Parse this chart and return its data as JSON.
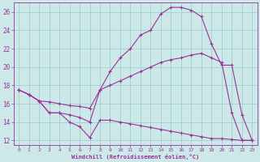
{
  "xlabel": "Windchill (Refroidissement éolien,°C)",
  "background_color": "#cce8e8",
  "grid_color": "#99cccc",
  "line_color": "#993399",
  "xlim": [
    -0.5,
    23.5
  ],
  "ylim": [
    11.5,
    27.0
  ],
  "yticks": [
    12,
    14,
    16,
    18,
    20,
    22,
    24,
    26
  ],
  "xticks": [
    0,
    1,
    2,
    3,
    4,
    5,
    6,
    7,
    8,
    9,
    10,
    11,
    12,
    13,
    14,
    15,
    16,
    17,
    18,
    19,
    20,
    21,
    22,
    23
  ],
  "series1_x": [
    0,
    1,
    2,
    3,
    4,
    5,
    6,
    7,
    8,
    9,
    10,
    11,
    12,
    13,
    14,
    15,
    16,
    17,
    18,
    19,
    20,
    21,
    22,
    23
  ],
  "series1_y": [
    17.5,
    17.0,
    16.3,
    15.0,
    15.0,
    14.0,
    13.5,
    12.3,
    14.2,
    14.2,
    14.0,
    13.8,
    13.6,
    13.4,
    13.2,
    13.0,
    12.8,
    12.6,
    12.4,
    12.2,
    12.2,
    12.1,
    12.0,
    12.0
  ],
  "series2_x": [
    0,
    1,
    2,
    3,
    4,
    5,
    6,
    7,
    8,
    9,
    10,
    11,
    12,
    13,
    14,
    15,
    16,
    17,
    18,
    19,
    20,
    21,
    22,
    23
  ],
  "series2_y": [
    17.5,
    17.0,
    16.3,
    16.2,
    16.0,
    15.8,
    15.7,
    15.5,
    17.5,
    18.0,
    18.5,
    19.0,
    19.5,
    20.0,
    20.5,
    20.8,
    21.0,
    21.3,
    21.5,
    21.0,
    20.5,
    15.0,
    12.0,
    12.0
  ],
  "series3_x": [
    0,
    1,
    2,
    3,
    4,
    5,
    6,
    7,
    8,
    9,
    10,
    11,
    12,
    13,
    14,
    15,
    16,
    17,
    18,
    19,
    20,
    21,
    22,
    23
  ],
  "series3_y": [
    17.5,
    17.0,
    16.3,
    15.0,
    15.0,
    14.8,
    14.5,
    14.0,
    17.5,
    19.5,
    21.0,
    22.0,
    23.5,
    24.0,
    25.8,
    26.5,
    26.5,
    26.2,
    25.5,
    22.5,
    20.2,
    20.2,
    14.8,
    12.0
  ]
}
